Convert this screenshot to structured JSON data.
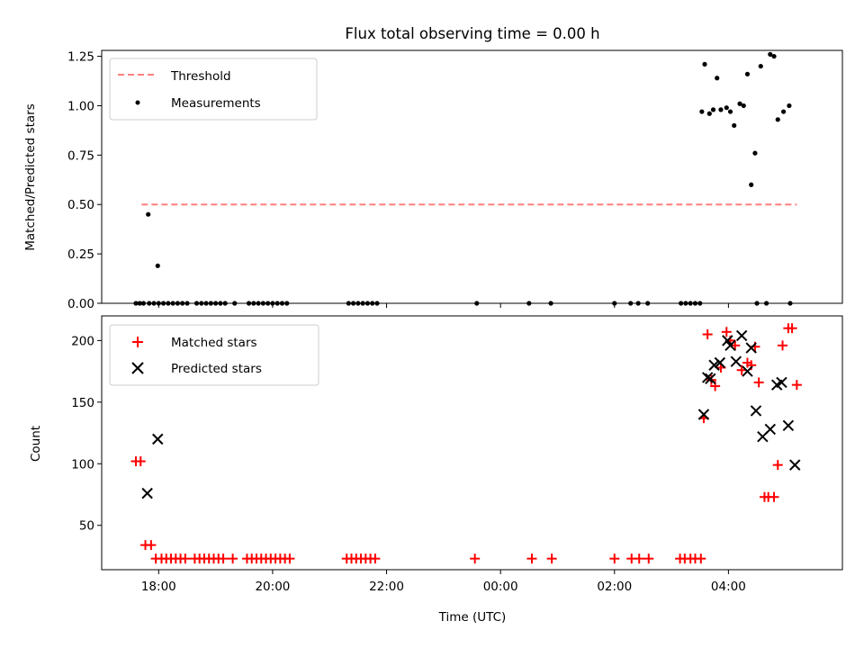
{
  "chart_data": [
    {
      "type": "scatter",
      "title": "Flux total observing time = 0.00 h",
      "ylabel": "Matched/Predicted stars",
      "xlabel": "",
      "xlim": [
        "17:00",
        "06:00"
      ],
      "ylim": [
        0,
        1.28
      ],
      "yticks": [
        0.0,
        0.25,
        0.5,
        0.75,
        1.0,
        1.25
      ],
      "ytick_labels": [
        "0.00",
        "0.25",
        "0.50",
        "0.75",
        "1.00",
        "1.25"
      ],
      "legend_position": "top-left",
      "series": [
        {
          "name": "Threshold",
          "kind": "dashed-line",
          "color": "#ff7f7f",
          "x": [
            "17:42",
            "05:12"
          ],
          "y": [
            0.5,
            0.5
          ]
        },
        {
          "name": "Measurements",
          "kind": "dots",
          "color": "#000000",
          "x": [
            "17:36",
            "17:40",
            "17:44",
            "17:50",
            "17:55",
            "18:00",
            "18:05",
            "18:10",
            "18:15",
            "18:20",
            "18:25",
            "18:30",
            "18:40",
            "18:45",
            "18:50",
            "18:55",
            "19:00",
            "19:05",
            "19:10",
            "19:20",
            "19:35",
            "19:40",
            "19:45",
            "19:50",
            "19:55",
            "20:00",
            "20:05",
            "20:10",
            "20:15",
            "21:20",
            "21:25",
            "21:30",
            "21:35",
            "21:40",
            "21:45",
            "21:50",
            "23:35",
            "00:30",
            "00:53",
            "02:00",
            "02:17",
            "02:25",
            "02:35",
            "03:10",
            "03:15",
            "03:20",
            "03:25",
            "03:30",
            "04:30",
            "04:40",
            "05:05",
            "17:49",
            "17:59",
            "03:32",
            "03:35",
            "03:40",
            "03:44",
            "03:48",
            "03:52",
            "03:58",
            "04:02",
            "04:06",
            "04:12",
            "04:16",
            "04:20",
            "04:24",
            "04:28",
            "04:34",
            "04:44",
            "04:48",
            "04:52",
            "04:58",
            "05:04"
          ],
          "y": [
            0,
            0,
            0,
            0,
            0,
            0,
            0,
            0,
            0,
            0,
            0,
            0,
            0,
            0,
            0,
            0,
            0,
            0,
            0,
            0,
            0,
            0,
            0,
            0,
            0,
            0,
            0,
            0,
            0,
            0,
            0,
            0,
            0,
            0,
            0,
            0,
            0,
            0,
            0,
            0,
            0,
            0,
            0,
            0,
            0,
            0,
            0,
            0,
            0,
            0,
            0,
            0.45,
            0.19,
            0.97,
            1.21,
            0.96,
            0.98,
            1.14,
            0.98,
            0.99,
            0.97,
            0.9,
            1.01,
            1.0,
            1.16,
            0.6,
            0.76,
            1.2,
            1.26,
            1.25,
            0.93,
            0.97,
            1.0
          ]
        }
      ]
    },
    {
      "type": "scatter",
      "title": "",
      "ylabel": "Count",
      "xlabel": "Time (UTC)",
      "xlim": [
        "17:00",
        "06:00"
      ],
      "ylim": [
        14,
        220
      ],
      "yticks": [
        50,
        100,
        150,
        200
      ],
      "ytick_labels": [
        "50",
        "100",
        "150",
        "200"
      ],
      "xticks": [
        "18:00",
        "20:00",
        "22:00",
        "00:00",
        "02:00",
        "04:00"
      ],
      "legend_position": "top-left",
      "series": [
        {
          "name": "Matched stars",
          "kind": "plus",
          "color": "#ff0000",
          "x": [
            "17:36",
            "17:41",
            "17:46",
            "17:52",
            "17:57",
            "18:03",
            "18:08",
            "18:13",
            "18:18",
            "18:23",
            "18:28",
            "18:38",
            "18:43",
            "18:48",
            "18:53",
            "18:58",
            "19:03",
            "19:08",
            "19:18",
            "19:33",
            "19:38",
            "19:43",
            "19:48",
            "19:53",
            "19:58",
            "20:03",
            "20:08",
            "20:13",
            "20:18",
            "21:18",
            "21:23",
            "21:28",
            "21:33",
            "21:38",
            "21:43",
            "21:48",
            "23:33",
            "00:33",
            "00:54",
            "02:00",
            "02:18",
            "02:26",
            "02:36",
            "03:09",
            "03:14",
            "03:20",
            "03:25",
            "03:31",
            "03:34",
            "03:38",
            "03:42",
            "03:46",
            "03:52",
            "03:58",
            "04:02",
            "04:07",
            "04:14",
            "04:20",
            "04:24",
            "04:28",
            "04:32",
            "04:38",
            "04:42",
            "04:48",
            "04:52",
            "04:57",
            "05:03",
            "05:07",
            "05:12"
          ],
          "y": [
            102,
            102,
            34,
            34,
            23,
            23,
            23,
            23,
            23,
            23,
            23,
            23,
            23,
            23,
            23,
            23,
            23,
            23,
            23,
            23,
            23,
            23,
            23,
            23,
            23,
            23,
            23,
            23,
            23,
            23,
            23,
            23,
            23,
            23,
            23,
            23,
            23,
            23,
            23,
            23,
            23,
            23,
            23,
            23,
            23,
            23,
            23,
            23,
            137,
            205,
            168,
            163,
            178,
            207,
            200,
            196,
            176,
            182,
            180,
            195,
            166,
            73,
            73,
            73,
            99,
            196,
            210,
            210,
            164
          ]
        },
        {
          "name": "Predicted stars",
          "kind": "x",
          "color": "#000000",
          "x": [
            "17:48",
            "17:59",
            "03:34",
            "03:38",
            "03:41",
            "03:45",
            "03:51",
            "03:59",
            "04:02",
            "04:08",
            "04:14",
            "04:20",
            "04:24",
            "04:29",
            "04:36",
            "04:44",
            "04:51",
            "04:56",
            "05:03",
            "05:10"
          ],
          "y": [
            76,
            120,
            140,
            170,
            169,
            180,
            182,
            200,
            196,
            183,
            204,
            175,
            194,
            143,
            122,
            128,
            164,
            166,
            131,
            99
          ]
        }
      ]
    }
  ]
}
